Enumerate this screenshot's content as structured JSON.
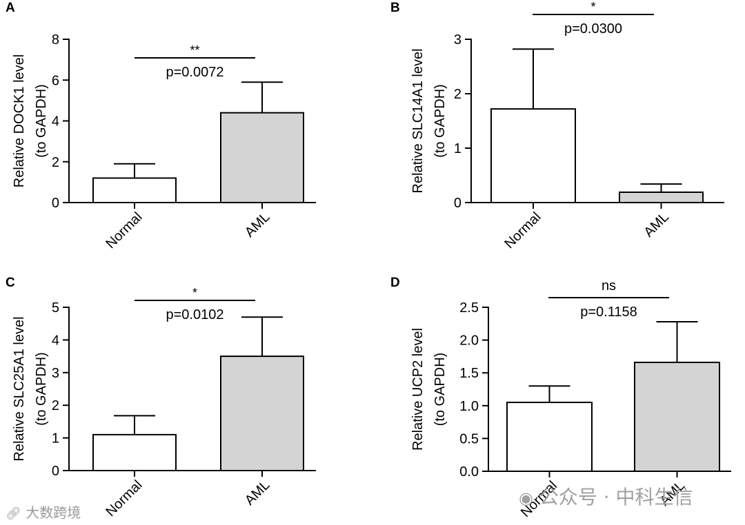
{
  "chart_data": [
    {
      "panel": "A",
      "type": "bar",
      "categories": [
        "Normal",
        "AML"
      ],
      "values": [
        1.2,
        4.4
      ],
      "errors": [
        0.7,
        1.5
      ],
      "colors": [
        "#ffffff",
        "#d4d4d4"
      ],
      "ylabel": "Relative DOCK1 level",
      "ylabel2": "(to GAPDH)",
      "ylim": [
        0,
        8
      ],
      "yticks": [
        0,
        2,
        4,
        6,
        8
      ],
      "ytick_labels": [
        "0",
        "2",
        "4",
        "6",
        "8"
      ],
      "significance": "**",
      "pvalue": "p=0.0072"
    },
    {
      "panel": "B",
      "type": "bar",
      "categories": [
        "Normal",
        "AML"
      ],
      "values": [
        1.72,
        0.19
      ],
      "errors": [
        1.1,
        0.15
      ],
      "colors": [
        "#ffffff",
        "#d4d4d4"
      ],
      "ylabel": "Relative SLC14A1 level",
      "ylabel2": "(to GAPDH)",
      "ylim": [
        0,
        3
      ],
      "yticks": [
        0,
        1,
        2,
        3
      ],
      "ytick_labels": [
        "0",
        "1",
        "2",
        "3"
      ],
      "significance": "*",
      "pvalue": "p=0.0300"
    },
    {
      "panel": "C",
      "type": "bar",
      "categories": [
        "Normal",
        "AML"
      ],
      "values": [
        1.1,
        3.5
      ],
      "errors": [
        0.58,
        1.2
      ],
      "colors": [
        "#ffffff",
        "#d4d4d4"
      ],
      "ylabel": "Relative SLC25A1 level",
      "ylabel2": "(to GAPDH)",
      "ylim": [
        0,
        5
      ],
      "yticks": [
        0,
        1,
        2,
        3,
        4,
        5
      ],
      "ytick_labels": [
        "0",
        "1",
        "2",
        "3",
        "4",
        "5"
      ],
      "significance": "*",
      "pvalue": "p=0.0102"
    },
    {
      "panel": "D",
      "type": "bar",
      "categories": [
        "Normal",
        "AML"
      ],
      "values": [
        1.05,
        1.66
      ],
      "errors": [
        0.25,
        0.62
      ],
      "colors": [
        "#ffffff",
        "#d4d4d4"
      ],
      "ylabel": "Relative UCP2  level",
      "ylabel2": "(to GAPDH)",
      "ylim": [
        0,
        2.5
      ],
      "yticks": [
        0,
        0.5,
        1,
        1.5,
        2,
        2.5
      ],
      "ytick_labels": [
        "0.0",
        "0.5",
        "1.0",
        "1.5",
        "2.0",
        "2.5"
      ],
      "significance": "ns",
      "pvalue": "p=0.1158"
    }
  ],
  "watermarks": {
    "left": "大数跨境",
    "right": "公众号 · 中科生信"
  }
}
